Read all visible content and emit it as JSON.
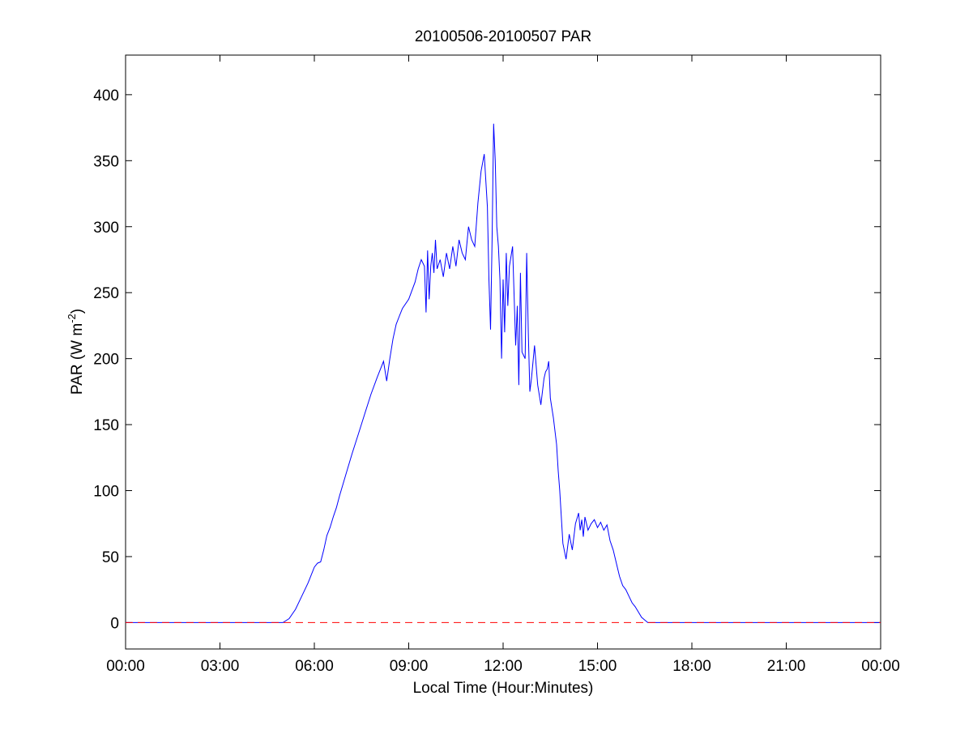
{
  "chart_data": {
    "type": "line",
    "title": "20100506-20100507 PAR",
    "xlabel": "Local Time (Hour:Minutes)",
    "ylabel": {
      "text": "PAR (W m",
      "superscript": "-2",
      "suffix": ")"
    },
    "xlim": [
      0,
      24
    ],
    "ylim": [
      -20,
      430
    ],
    "x_ticks": [
      0,
      3,
      6,
      9,
      12,
      15,
      18,
      21,
      24
    ],
    "x_tick_labels": [
      "00:00",
      "03:00",
      "06:00",
      "09:00",
      "12:00",
      "15:00",
      "18:00",
      "21:00",
      "00:00"
    ],
    "y_ticks": [
      0,
      50,
      100,
      150,
      200,
      250,
      300,
      350,
      400
    ],
    "y_tick_labels": [
      "0",
      "50",
      "100",
      "150",
      "200",
      "250",
      "300",
      "350",
      "400"
    ],
    "grid": false,
    "series": [
      {
        "style": "solid",
        "color": "#0000ff",
        "x_unit": "hours",
        "x": [
          0,
          5.0,
          5.2,
          5.4,
          5.6,
          5.8,
          6.0,
          6.1,
          6.2,
          6.3,
          6.4,
          6.5,
          6.6,
          6.7,
          6.8,
          7.0,
          7.2,
          7.4,
          7.6,
          7.8,
          8.0,
          8.2,
          8.3,
          8.4,
          8.5,
          8.6,
          8.7,
          8.8,
          9.0,
          9.2,
          9.3,
          9.4,
          9.5,
          9.55,
          9.6,
          9.65,
          9.7,
          9.75,
          9.8,
          9.85,
          9.9,
          10.0,
          10.1,
          10.2,
          10.3,
          10.4,
          10.5,
          10.6,
          10.7,
          10.8,
          10.9,
          11.0,
          11.1,
          11.2,
          11.3,
          11.4,
          11.5,
          11.55,
          11.6,
          11.65,
          11.7,
          11.75,
          11.8,
          11.85,
          11.9,
          11.95,
          12.0,
          12.05,
          12.1,
          12.15,
          12.2,
          12.3,
          12.4,
          12.45,
          12.5,
          12.55,
          12.6,
          12.7,
          12.75,
          12.8,
          12.85,
          12.9,
          13.0,
          13.1,
          13.2,
          13.3,
          13.35,
          13.4,
          13.45,
          13.5,
          13.6,
          13.7,
          13.75,
          13.8,
          13.9,
          14.0,
          14.1,
          14.2,
          14.3,
          14.4,
          14.45,
          14.5,
          14.55,
          14.6,
          14.7,
          14.8,
          14.9,
          15.0,
          15.1,
          15.2,
          15.3,
          15.4,
          15.5,
          15.6,
          15.7,
          15.8,
          15.9,
          16.0,
          16.1,
          16.2,
          16.3,
          16.4,
          16.5,
          16.6,
          16.8,
          17.0,
          17.2,
          17.5,
          17.8,
          18.0,
          18.2,
          18.5,
          18.8,
          19.0,
          20.0,
          21.0,
          24.0
        ],
        "y": [
          0,
          0,
          3,
          10,
          20,
          30,
          42,
          45,
          46,
          55,
          66,
          72,
          80,
          87,
          96,
          112,
          128,
          143,
          158,
          173,
          186,
          198,
          183,
          200,
          215,
          226,
          232,
          238,
          245,
          258,
          268,
          275,
          270,
          235,
          282,
          245,
          270,
          280,
          265,
          290,
          268,
          275,
          262,
          280,
          268,
          285,
          270,
          290,
          280,
          275,
          300,
          290,
          285,
          318,
          342,
          355,
          315,
          260,
          222,
          290,
          378,
          350,
          300,
          285,
          260,
          200,
          260,
          220,
          280,
          240,
          270,
          285,
          210,
          240,
          180,
          265,
          205,
          200,
          280,
          220,
          175,
          185,
          210,
          180,
          165,
          185,
          190,
          192,
          198,
          170,
          155,
          135,
          115,
          100,
          60,
          48,
          67,
          55,
          75,
          83,
          70,
          78,
          65,
          80,
          70,
          75,
          78,
          72,
          76,
          70,
          74,
          62,
          55,
          45,
          35,
          28,
          25,
          20,
          15,
          12,
          8,
          4,
          2,
          0,
          0,
          0,
          0,
          0,
          0,
          0,
          0,
          0,
          0,
          0,
          0,
          0,
          0
        ]
      },
      {
        "style": "dashed",
        "color": "#ff0000",
        "x_unit": "hours",
        "x": [
          0,
          24
        ],
        "y": [
          0,
          0
        ]
      }
    ]
  }
}
